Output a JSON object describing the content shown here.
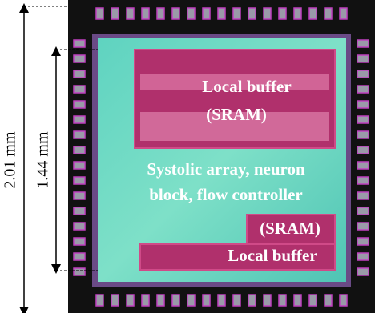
{
  "dimensions": {
    "outer": "2.01 mm",
    "inner": "1.44 mm"
  },
  "blocks": {
    "top_buffer": {
      "title": "Local buffer",
      "subtitle": "(SRAM)"
    },
    "core": {
      "lines": [
        "Systolic array, neuron",
        "block, flow controller"
      ]
    },
    "bottom_buffer": {
      "subtitle": "(SRAM)",
      "title": "Local buffer"
    }
  }
}
